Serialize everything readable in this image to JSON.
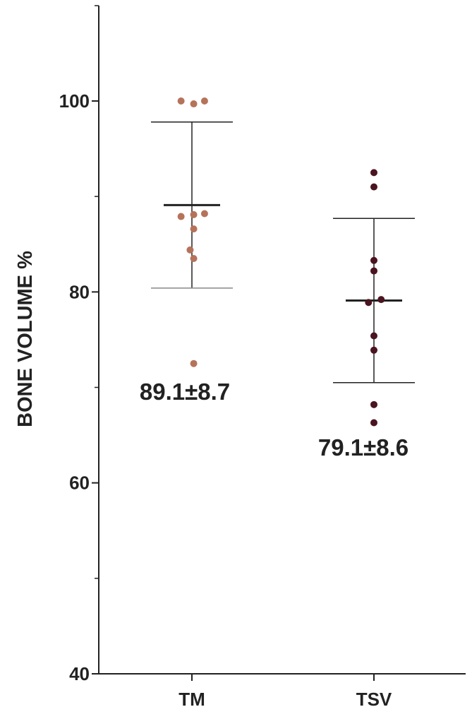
{
  "chart_data": {
    "type": "scatter",
    "title": "",
    "xlabel": "",
    "ylabel": "BONE VOLUME %",
    "ylim": [
      40,
      110
    ],
    "yticks": [
      40,
      60,
      80,
      100
    ],
    "yticks_minor": [
      50,
      70,
      90
    ],
    "categories": [
      "TM",
      "TSV"
    ],
    "grid": false,
    "series": [
      {
        "category": "TM",
        "color": "#b5735a",
        "values": [
          100.0,
          99.7,
          100.0,
          87.9,
          88.1,
          88.2,
          86.6,
          84.4,
          83.5,
          72.5
        ],
        "jitter": [
          -0.06,
          0.01,
          0.07,
          -0.06,
          0.01,
          0.07,
          0.01,
          -0.01,
          0.01,
          0.01
        ],
        "mean": 89.1,
        "upper": 97.8,
        "lower": 80.4,
        "annotation": "89.1±8.7"
      },
      {
        "category": "TSV",
        "color": "#4a1420",
        "values": [
          92.5,
          91.0,
          83.3,
          82.2,
          79.2,
          78.9,
          75.4,
          73.9,
          68.2,
          66.3
        ],
        "jitter": [
          0.0,
          0.0,
          0.0,
          0.0,
          0.04,
          -0.03,
          0.0,
          0.0,
          0.0,
          0.0
        ],
        "mean": 79.1,
        "upper": 87.7,
        "lower": 70.5,
        "annotation": "79.1±8.6"
      }
    ]
  }
}
